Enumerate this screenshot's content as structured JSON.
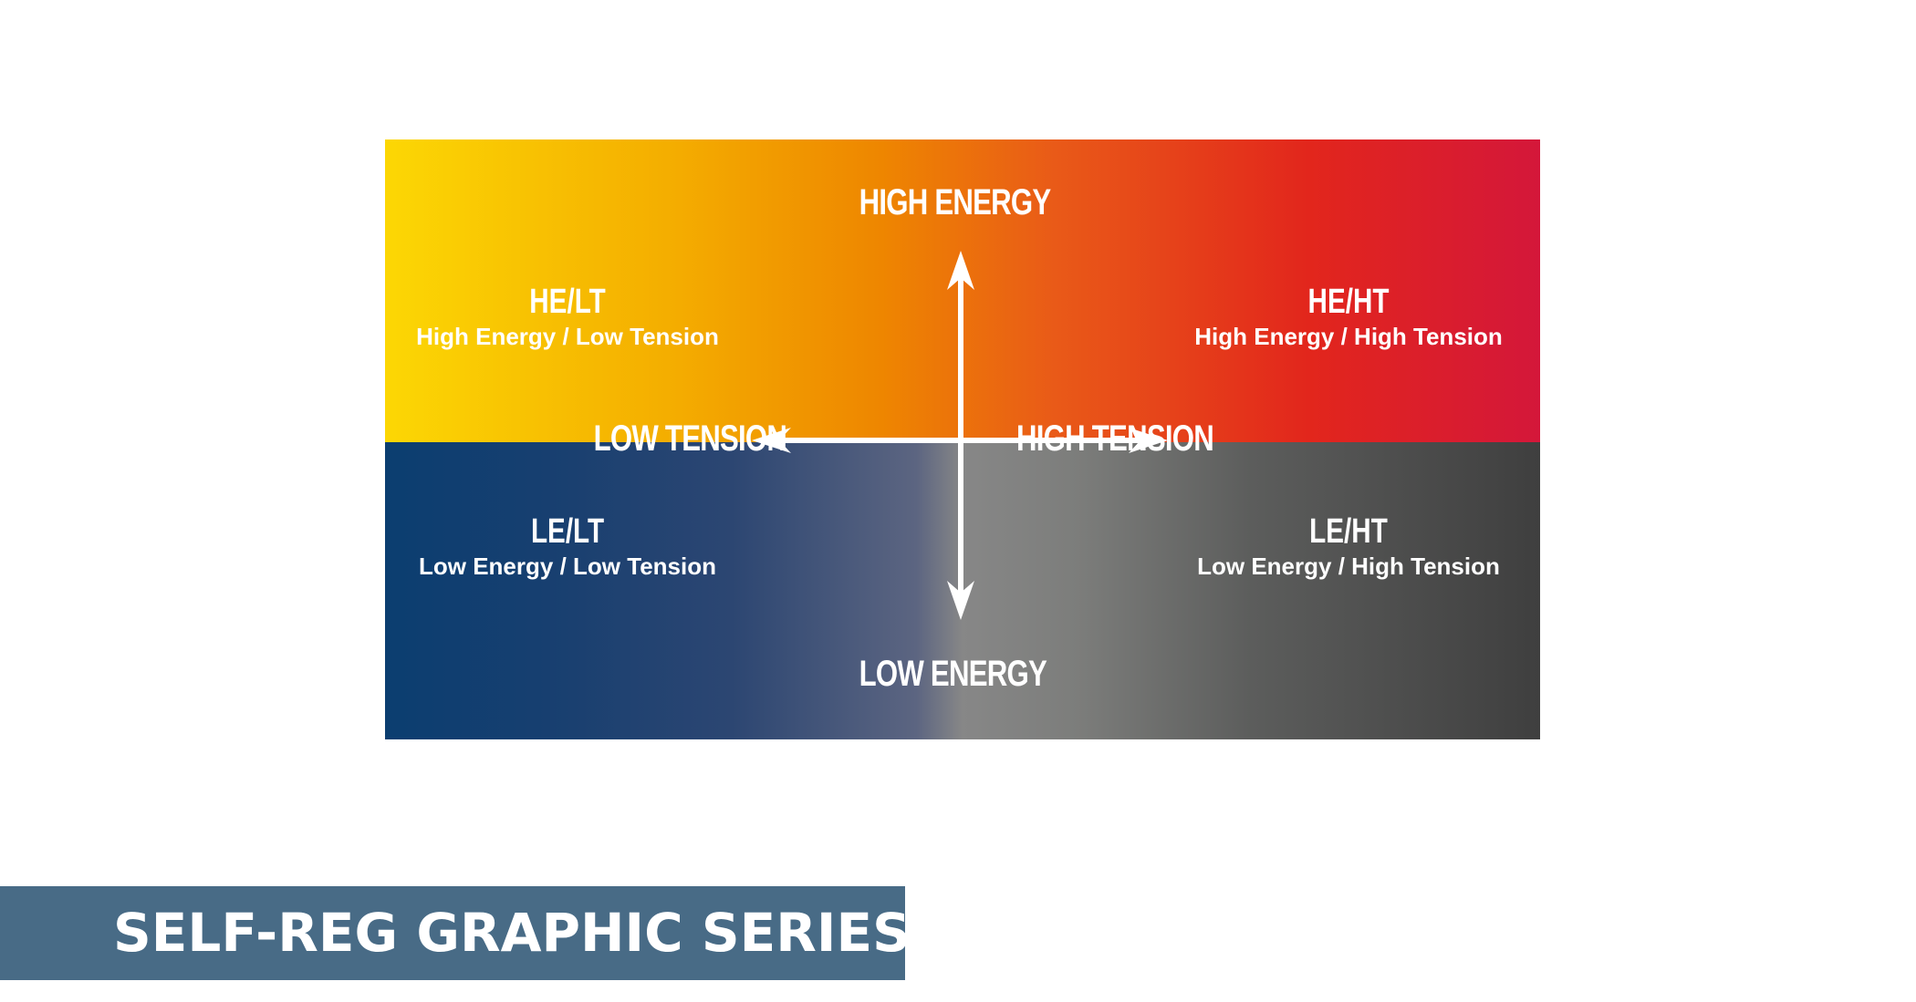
{
  "diagram": {
    "axes": {
      "top": "HIGH ENERGY",
      "bottom": "LOW ENERGY",
      "left": "LOW TENSION",
      "right": "HIGH TENSION"
    },
    "quadrants": {
      "top_left": {
        "code": "HE/LT",
        "description": "High Energy / Low Tension"
      },
      "top_right": {
        "code": "HE/HT",
        "description": "High Energy / High Tension"
      },
      "bottom_left": {
        "code": "LE/LT",
        "description": "Low Energy / Low Tension"
      },
      "bottom_right": {
        "code": "LE/HT",
        "description": "Low Energy / High Tension"
      }
    },
    "colors": {
      "top_left": "#fcd704",
      "top_center": "#ee8600",
      "top_right": "#d4173a",
      "bottom_left": "#0b3e70",
      "bottom_center": "#878787",
      "bottom_right": "#3f3f3f",
      "arrows": "#ffffff"
    }
  },
  "banner": {
    "title": "SELF-REG GRAPHIC SERIES",
    "background": "#486b86"
  }
}
